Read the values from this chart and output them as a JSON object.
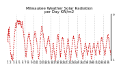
{
  "title": "Milwaukee Weather Solar Radiation\nper Day KW/m2",
  "title_fontsize": 4.0,
  "bg_color": "#ffffff",
  "line_color": "#cc0000",
  "grid_color": "#bbbbbb",
  "ylim": [
    1,
    9
  ],
  "ylabel_fontsize": 3.2,
  "xlabel_fontsize": 3.0,
  "yticks": [
    1,
    9
  ],
  "values": [
    5.5,
    4.2,
    5.8,
    6.5,
    5.2,
    6.8,
    5.0,
    4.0,
    3.5,
    2.8,
    2.2,
    1.8,
    1.5,
    1.2,
    2.0,
    1.5,
    1.2,
    1.0,
    1.3,
    2.0,
    3.2,
    3.8,
    4.5,
    5.2,
    5.8,
    6.2,
    6.8,
    7.2,
    7.5,
    7.0,
    6.8,
    7.2,
    7.8,
    8.0,
    7.8,
    7.5,
    7.2,
    7.5,
    7.8,
    8.0,
    7.8,
    7.5,
    7.2,
    7.5,
    7.8,
    7.2,
    7.0,
    6.8,
    7.2,
    7.5,
    7.8,
    7.2,
    6.8,
    6.5,
    6.0,
    5.5,
    5.0,
    4.5,
    4.0,
    3.5,
    3.0,
    2.5,
    2.0,
    1.5,
    2.0,
    2.5,
    3.0,
    3.5,
    4.0,
    4.5,
    5.0,
    5.2,
    5.5,
    5.8,
    5.5,
    5.2,
    4.8,
    4.5,
    4.0,
    3.8,
    3.5,
    3.0,
    2.5,
    2.0,
    1.5,
    1.2,
    1.8,
    2.5,
    3.0,
    3.8,
    4.5,
    5.0,
    5.5,
    5.8,
    6.0,
    5.8,
    5.5,
    5.2,
    4.8,
    4.5,
    4.2,
    3.8,
    3.5,
    3.0,
    2.5,
    2.0,
    1.5,
    1.2,
    1.8,
    2.2,
    3.0,
    3.5,
    4.2,
    4.8,
    5.5,
    6.0,
    6.5,
    7.0,
    6.8,
    6.5,
    6.2,
    5.8,
    5.5,
    5.2,
    4.8,
    4.5,
    4.2,
    3.8,
    3.5,
    3.2,
    3.0,
    2.8,
    2.5,
    2.2,
    2.8,
    3.2,
    3.8,
    4.2,
    4.5,
    4.8,
    5.0,
    5.2,
    4.8,
    4.5,
    4.2,
    3.8,
    3.5,
    3.0,
    2.5,
    2.0,
    1.5,
    1.2,
    1.5,
    2.0,
    2.5,
    3.0,
    3.5,
    4.0,
    3.5,
    3.0,
    2.5,
    2.2,
    1.8,
    1.5,
    1.2,
    1.0,
    1.5,
    2.0,
    2.8,
    3.5,
    4.2,
    4.8,
    5.2,
    5.5,
    5.2,
    4.8,
    4.5,
    4.0,
    3.5,
    3.0,
    2.5,
    2.0,
    1.5,
    2.2,
    2.8,
    3.5,
    4.0,
    4.5,
    4.8,
    5.0,
    4.8,
    4.5,
    4.0,
    3.8,
    3.5,
    3.0,
    2.5,
    2.2,
    1.8,
    1.5,
    1.2,
    1.5,
    2.0,
    2.5,
    3.0,
    3.5,
    4.0,
    4.5,
    4.8,
    4.5,
    4.0,
    3.5,
    3.0,
    2.5,
    2.0,
    1.5,
    1.2,
    1.0,
    1.5,
    2.0,
    2.5,
    3.0,
    3.5,
    4.0,
    4.5,
    4.8,
    5.0,
    5.2,
    4.8,
    4.5,
    4.2,
    3.8,
    3.5,
    3.0,
    2.5,
    2.2,
    1.8,
    1.5,
    2.0,
    2.8,
    3.2,
    3.8,
    4.2,
    4.5,
    4.8,
    5.0,
    5.2,
    5.5,
    5.0,
    4.8,
    4.5,
    4.0,
    3.8,
    3.5,
    3.0,
    2.5,
    2.2,
    1.8,
    1.5,
    1.2,
    1.5,
    1.8,
    2.2,
    2.5,
    2.8,
    3.0,
    3.5,
    3.8,
    4.0,
    3.8,
    3.5,
    3.2,
    2.8,
    2.5,
    2.2,
    1.8,
    2.2,
    2.5,
    2.8,
    3.2,
    3.5,
    3.8,
    4.0,
    3.8,
    3.5,
    3.0,
    2.5,
    2.0,
    1.5,
    1.2,
    1.5,
    2.0,
    2.5,
    2.8,
    3.2,
    3.5,
    3.8,
    4.0,
    3.8,
    3.5,
    3.2,
    2.8,
    2.5,
    2.0,
    1.8,
    2.2,
    2.8,
    3.2,
    3.5,
    3.8,
    4.0,
    4.2,
    3.8,
    3.5,
    3.2,
    2.8,
    2.5,
    2.0,
    2.5,
    3.0,
    3.5,
    4.0,
    4.5,
    4.8,
    5.0,
    4.8,
    4.5,
    4.2,
    4.0,
    3.8,
    3.5,
    3.2,
    2.8,
    2.5,
    2.0,
    1.8,
    2.2,
    2.5,
    2.8,
    3.2,
    3.8,
    4.2,
    4.5,
    4.8,
    5.0,
    5.2,
    5.5,
    5.0,
    4.8,
    4.5,
    4.2,
    3.8,
    3.2,
    2.8,
    2.5,
    2.2,
    1.8
  ],
  "vgrid_positions": [
    29,
    59,
    89,
    119,
    149,
    179,
    209,
    239,
    269,
    299,
    329
  ],
  "xtick_labels": [
    "1",
    "2",
    "3",
    "4",
    "5",
    "6",
    "7",
    "8",
    "9",
    "10",
    "11",
    "12",
    "13",
    "14",
    "15",
    "16",
    "17",
    "18",
    "19",
    "20",
    "21",
    "22",
    "23",
    "24",
    "25",
    "26",
    "27",
    "28",
    "29",
    "30",
    "31",
    "32",
    "33",
    "34",
    "35"
  ],
  "n_xticks": 35
}
